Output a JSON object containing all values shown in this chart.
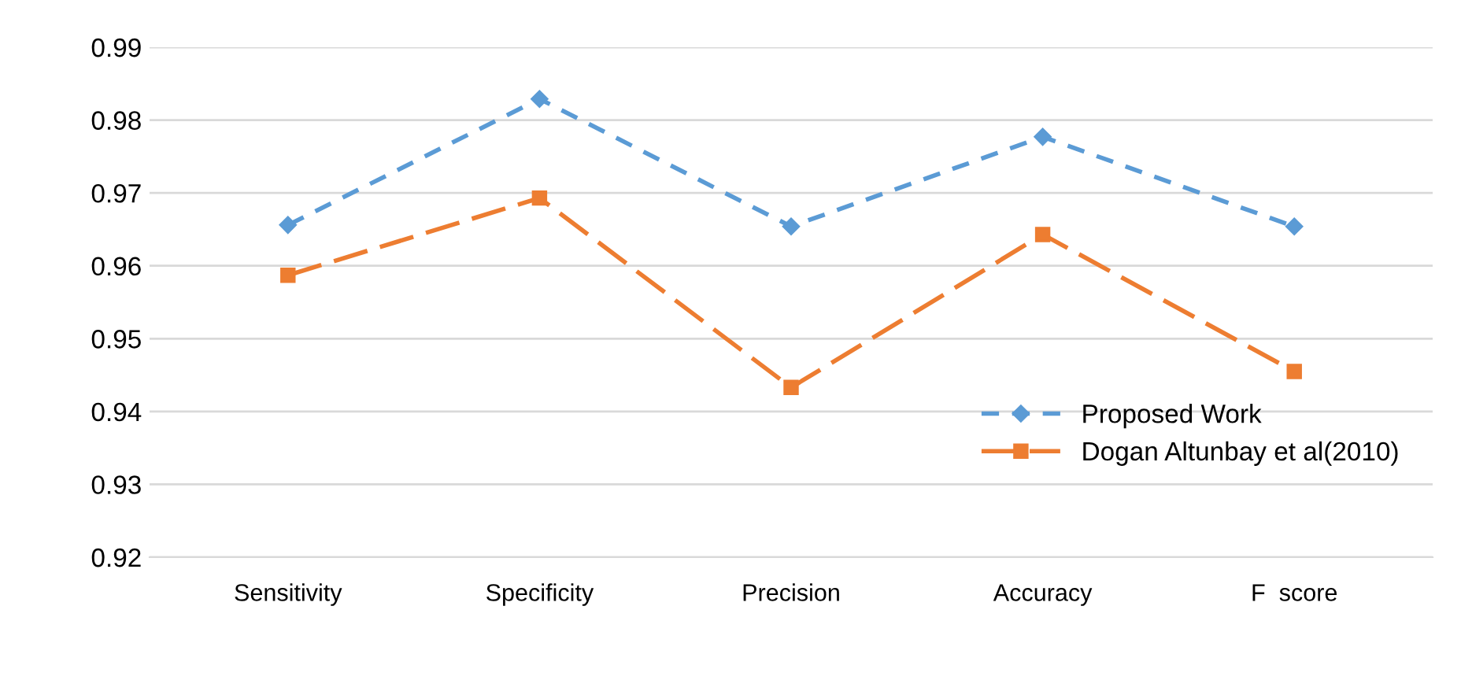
{
  "chart_data": {
    "type": "line",
    "categories": [
      "Sensitivity",
      "Specificity",
      "Precision",
      "Accuracy",
      "F  score"
    ],
    "series": [
      {
        "name": "Proposed Work",
        "color": "#5b9bd5",
        "marker": "diamond",
        "line_style": "dashed",
        "values": [
          0.9656,
          0.9829,
          0.9654,
          0.9777,
          0.9654
        ]
      },
      {
        "name": "Dogan Altunbay et al(2010)",
        "color": "#ed7d31",
        "marker": "square",
        "line_style": "long dashed",
        "values": [
          0.9587,
          0.9693,
          0.9433,
          0.9643,
          0.9455
        ]
      }
    ],
    "ylim": [
      0.92,
      0.99
    ],
    "yticks": [
      {
        "value": 0.92,
        "label": "0.92"
      },
      {
        "value": 0.93,
        "label": "0.93"
      },
      {
        "value": 0.94,
        "label": "0.94"
      },
      {
        "value": 0.95,
        "label": "0.95"
      },
      {
        "value": 0.96,
        "label": "0.96"
      },
      {
        "value": 0.97,
        "label": "0.97"
      },
      {
        "value": 0.98,
        "label": "0.98"
      },
      {
        "value": 0.99,
        "label": "0.99"
      }
    ],
    "grid": "y",
    "legend": "right"
  }
}
